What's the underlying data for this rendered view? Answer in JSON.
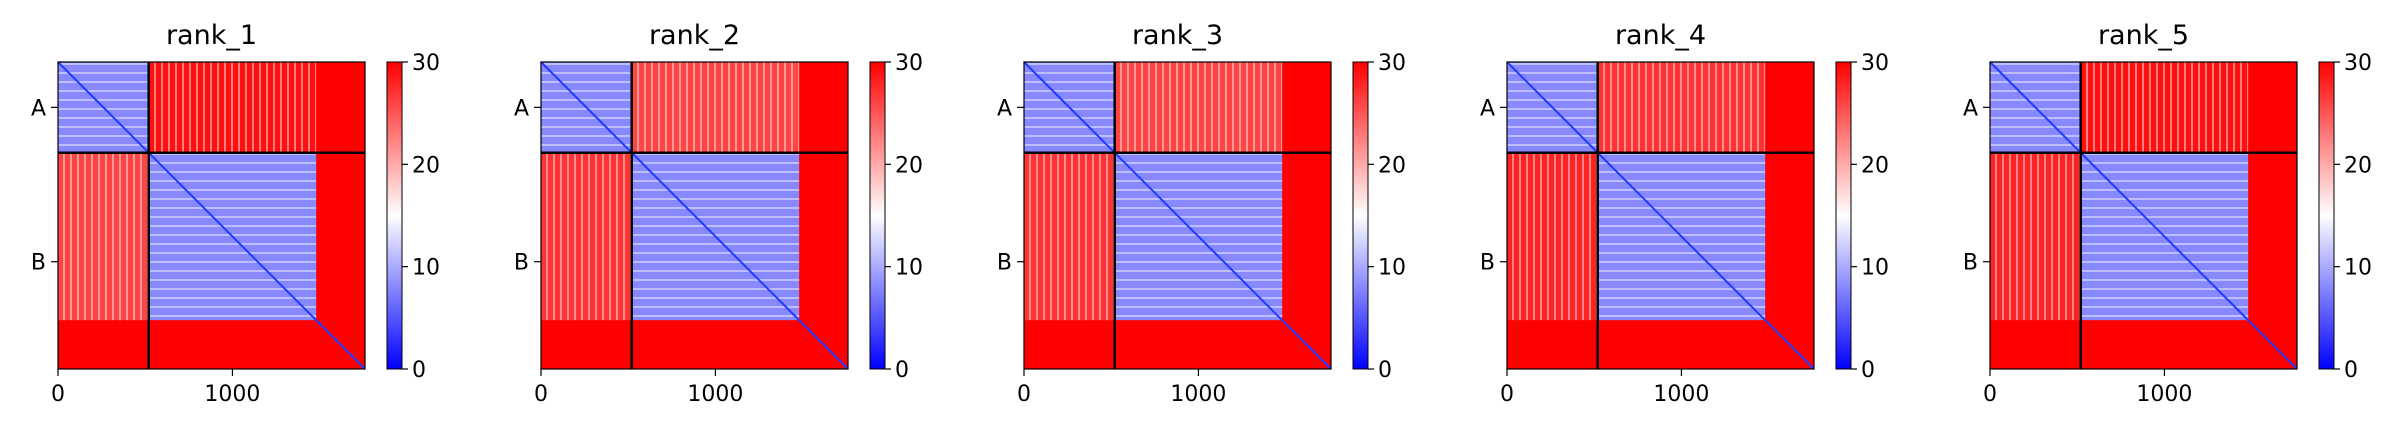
{
  "chart_data": [
    {
      "type": "heatmap",
      "title": "rank_1",
      "xlabel": "",
      "ylabel": "",
      "xlim": [
        0,
        1760
      ],
      "ylim": [
        1760,
        0
      ],
      "x_ticks": [
        0,
        1000
      ],
      "y_tick_labels": [
        {
          "label": "A",
          "value": 260
        },
        {
          "label": "B",
          "value": 1145
        }
      ],
      "chain_boundary": 520,
      "colormap": "bwr",
      "vmin": 0,
      "vmax": 30,
      "colorbar_ticks": [
        0,
        10,
        20,
        30
      ],
      "blocks": {
        "A-A": 8,
        "A-B": 29,
        "B-A": 26,
        "B-B": 8
      },
      "tail_start": 1480,
      "tail_value": 30
    },
    {
      "type": "heatmap",
      "title": "rank_2",
      "xlabel": "",
      "ylabel": "",
      "xlim": [
        0,
        1760
      ],
      "ylim": [
        1760,
        0
      ],
      "x_ticks": [
        0,
        1000
      ],
      "y_tick_labels": [
        {
          "label": "A",
          "value": 260
        },
        {
          "label": "B",
          "value": 1145
        }
      ],
      "chain_boundary": 520,
      "colormap": "bwr",
      "vmin": 0,
      "vmax": 30,
      "colorbar_ticks": [
        0,
        10,
        20,
        30
      ],
      "blocks": {
        "A-A": 8,
        "A-B": 26,
        "B-A": 27,
        "B-B": 8
      },
      "tail_start": 1480,
      "tail_value": 30
    },
    {
      "type": "heatmap",
      "title": "rank_3",
      "xlabel": "",
      "ylabel": "",
      "xlim": [
        0,
        1760
      ],
      "ylim": [
        1760,
        0
      ],
      "x_ticks": [
        0,
        1000
      ],
      "y_tick_labels": [
        {
          "label": "A",
          "value": 260
        },
        {
          "label": "B",
          "value": 1145
        }
      ],
      "chain_boundary": 520,
      "colormap": "bwr",
      "vmin": 0,
      "vmax": 30,
      "colorbar_ticks": [
        0,
        10,
        20,
        30
      ],
      "blocks": {
        "A-A": 8,
        "A-B": 26,
        "B-A": 27,
        "B-B": 8
      },
      "tail_start": 1480,
      "tail_value": 30
    },
    {
      "type": "heatmap",
      "title": "rank_4",
      "xlabel": "",
      "ylabel": "",
      "xlim": [
        0,
        1760
      ],
      "ylim": [
        1760,
        0
      ],
      "x_ticks": [
        0,
        1000
      ],
      "y_tick_labels": [
        {
          "label": "A",
          "value": 260
        },
        {
          "label": "B",
          "value": 1145
        }
      ],
      "chain_boundary": 520,
      "colormap": "bwr",
      "vmin": 0,
      "vmax": 30,
      "colorbar_ticks": [
        0,
        10,
        20,
        30
      ],
      "blocks": {
        "A-A": 8,
        "A-B": 27,
        "B-A": 28,
        "B-B": 8
      },
      "tail_start": 1480,
      "tail_value": 30
    },
    {
      "type": "heatmap",
      "title": "rank_5",
      "xlabel": "",
      "ylabel": "",
      "xlim": [
        0,
        1760
      ],
      "ylim": [
        1760,
        0
      ],
      "x_ticks": [
        0,
        1000
      ],
      "y_tick_labels": [
        {
          "label": "A",
          "value": 260
        },
        {
          "label": "B",
          "value": 1145
        }
      ],
      "chain_boundary": 520,
      "colormap": "bwr",
      "vmin": 0,
      "vmax": 30,
      "colorbar_ticks": [
        0,
        10,
        20,
        30
      ],
      "blocks": {
        "A-A": 8,
        "A-B": 29,
        "B-A": 28,
        "B-B": 8
      },
      "tail_start": 1480,
      "tail_value": 30
    }
  ]
}
